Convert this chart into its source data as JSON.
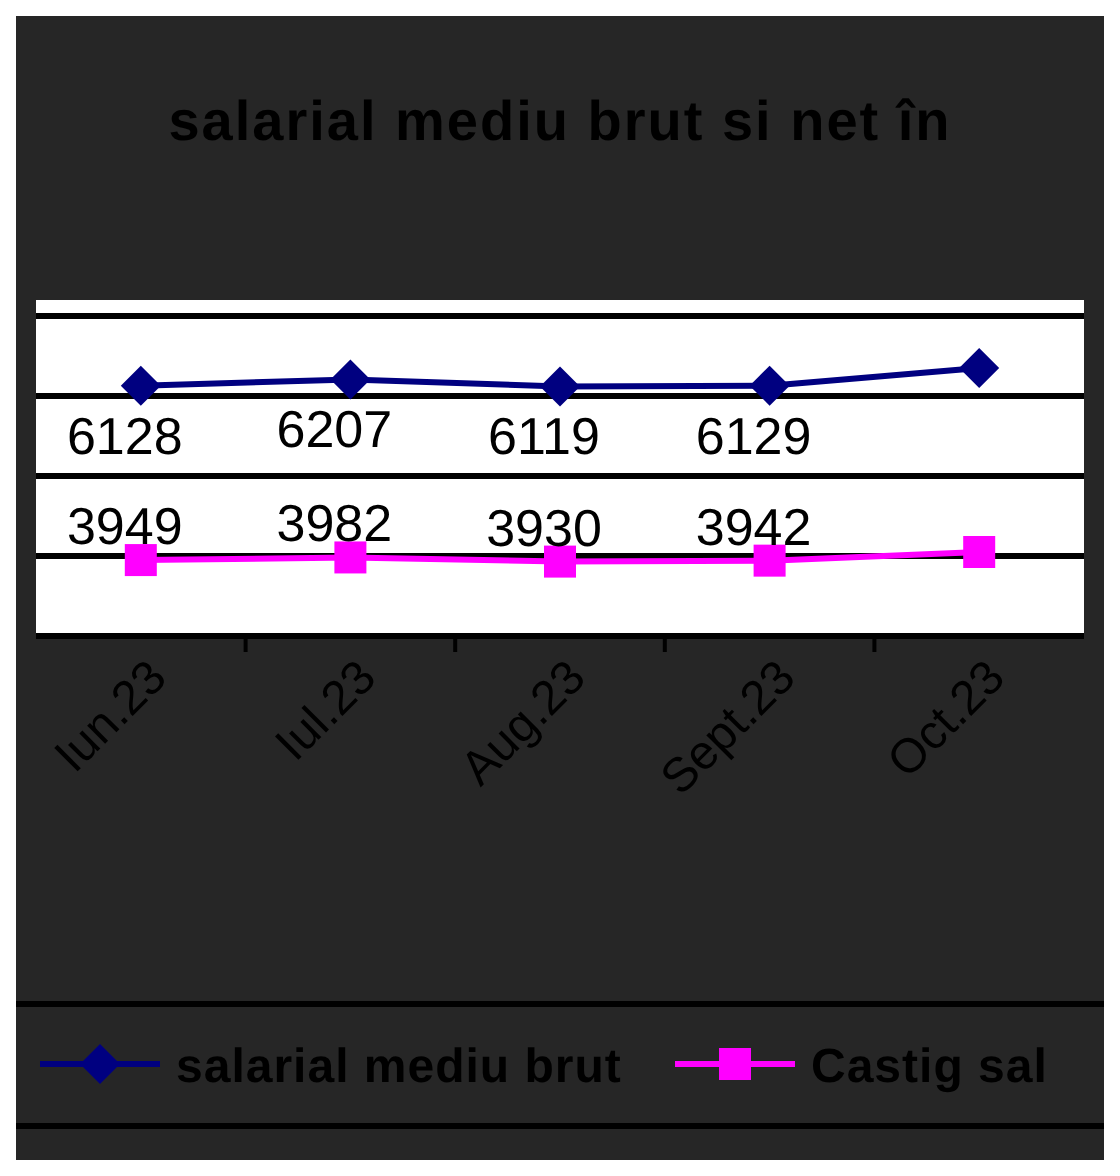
{
  "chart_data": {
    "type": "line",
    "title": "salarial mediu brut si net în",
    "categories": [
      "Iun.23",
      "Iul.23",
      "Aug.23",
      "Sept.23",
      "Oct.23"
    ],
    "series": [
      {
        "name": "salarial mediu brut",
        "color": "#000080",
        "marker": "diamond",
        "values": [
          6128,
          6207,
          6119,
          6129,
          6350
        ],
        "value_labels": [
          "6128",
          "6207",
          "6119",
          "6129",
          null
        ]
      },
      {
        "name": "Castig sal",
        "color": "#ff00ff",
        "marker": "square",
        "values": [
          3949,
          3982,
          3930,
          3942,
          4050
        ],
        "value_labels": [
          "3949",
          "3982",
          "3930",
          "3942",
          null
        ]
      }
    ],
    "ylim": [
      3000,
      7000
    ],
    "yticks": [
      {
        "value": 3000,
        "label": null
      },
      {
        "value": 4000,
        "label": null
      },
      {
        "value": 5000,
        "label": null
      },
      {
        "value": 6000,
        "label": null
      },
      {
        "value": 7000,
        "label": null
      }
    ],
    "grid": "y",
    "legend": "bottom",
    "tick_labels": "x"
  }
}
